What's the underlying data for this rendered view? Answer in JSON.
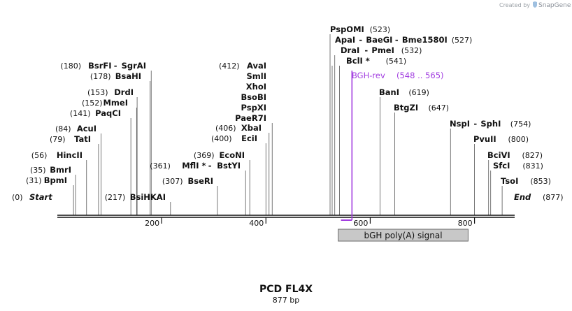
{
  "credit": {
    "prefix": "Created by",
    "brand": "SnapGene"
  },
  "map": {
    "name": "PCD FL4X",
    "length_label": "877 bp",
    "length_bp": 877,
    "start": {
      "label": "Start",
      "pos": "(0)"
    },
    "end": {
      "label": "End",
      "pos": "(877)"
    },
    "ticks": [
      {
        "bp": 200,
        "label": "200"
      },
      {
        "bp": 400,
        "label": "400"
      },
      {
        "bp": 600,
        "label": "600"
      },
      {
        "bp": 800,
        "label": "800"
      }
    ],
    "sites": [
      {
        "bp": 31,
        "pos": "(31)",
        "names": [
          "BpmI"
        ]
      },
      {
        "bp": 35,
        "pos": "(35)",
        "names": [
          "BmrI"
        ]
      },
      {
        "bp": 56,
        "pos": "(56)",
        "names": [
          "HincII"
        ]
      },
      {
        "bp": 79,
        "pos": "(79)",
        "names": [
          "TatI"
        ]
      },
      {
        "bp": 84,
        "pos": "(84)",
        "names": [
          "AcuI"
        ]
      },
      {
        "bp": 141,
        "pos": "(141)",
        "names": [
          "PaqCI"
        ]
      },
      {
        "bp": 152,
        "pos": "(152)",
        "names": [
          "MmeI"
        ]
      },
      {
        "bp": 153,
        "pos": "(153)",
        "names": [
          "DrdI"
        ]
      },
      {
        "bp": 178,
        "pos": "(178)",
        "names": [
          "BsaHI"
        ]
      },
      {
        "bp": 180,
        "pos": "(180)",
        "names": [
          "BsrFI",
          "SgrAI"
        ]
      },
      {
        "bp": 217,
        "pos": "(217)",
        "names": [
          "BsiHKAI"
        ]
      },
      {
        "bp": 307,
        "pos": "(307)",
        "names": [
          "BseRI"
        ]
      },
      {
        "bp": 361,
        "pos": "(361)",
        "names": [
          "MflI *",
          "BstYI"
        ]
      },
      {
        "bp": 369,
        "pos": "(369)",
        "names": [
          "EcoNI"
        ]
      },
      {
        "bp": 400,
        "pos": "(400)",
        "names": [
          "EciI"
        ]
      },
      {
        "bp": 406,
        "pos": "(406)",
        "names": [
          "XbaI"
        ]
      },
      {
        "bp": 412,
        "pos": "(412)",
        "names": [
          "AvaI",
          "SmlI",
          "XhoI",
          "BsoBI",
          "PspXI",
          "PaeR7I"
        ]
      },
      {
        "bp": 523,
        "pos": "(523)",
        "names": [
          "PspOMI"
        ]
      },
      {
        "bp": 527,
        "pos": "(527)",
        "names": [
          "ApaI",
          "BaeGI",
          "Bme1580I"
        ]
      },
      {
        "bp": 532,
        "pos": "(532)",
        "names": [
          "DraI",
          "PmeI"
        ]
      },
      {
        "bp": 541,
        "pos": "(541)",
        "names": [
          "BclI *"
        ]
      },
      {
        "bp": 619,
        "pos": "(619)",
        "names": [
          "BanI"
        ]
      },
      {
        "bp": 647,
        "pos": "(647)",
        "names": [
          "BtgZI"
        ]
      },
      {
        "bp": 754,
        "pos": "(754)",
        "names": [
          "NspI",
          "SphI"
        ]
      },
      {
        "bp": 800,
        "pos": "(800)",
        "names": [
          "PvuII"
        ]
      },
      {
        "bp": 827,
        "pos": "(827)",
        "names": [
          "BciVI"
        ]
      },
      {
        "bp": 831,
        "pos": "(831)",
        "names": [
          "SfcI"
        ]
      },
      {
        "bp": 853,
        "pos": "(853)",
        "names": [
          "TsoI"
        ]
      }
    ],
    "primer": {
      "name": "BGH-rev",
      "range": "(548 .. 565)",
      "start_bp": 548,
      "end_bp": 565,
      "color": "#a23de0"
    },
    "feature": {
      "name": "bGH poly(A) signal",
      "start_bp": 548,
      "end_bp": 777,
      "fill": "#c8c8c8",
      "stroke": "#6b6b6b"
    }
  }
}
